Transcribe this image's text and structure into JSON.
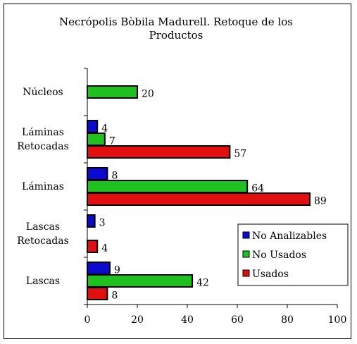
{
  "chart_data": {
    "type": "bar",
    "orientation": "horizontal",
    "title": "Necrópolis Bòbila Madurell. Retoque de los Productos",
    "categories": [
      "Núcleos",
      "Láminas Retocadas",
      "Láminas",
      "Lascas Retocadas",
      "Lascas"
    ],
    "series": [
      {
        "name": "No Analizables",
        "color": "#0a0ad0",
        "values": [
          null,
          4,
          8,
          3,
          9
        ]
      },
      {
        "name": "No Usados",
        "color": "#20c020",
        "values": [
          20,
          7,
          64,
          null,
          42
        ]
      },
      {
        "name": "Usados",
        "color": "#e01010",
        "values": [
          null,
          57,
          89,
          4,
          8
        ]
      }
    ],
    "xlim": [
      0,
      100
    ],
    "xticks": [
      0,
      20,
      40,
      60,
      80,
      100
    ],
    "legend": "lower right"
  }
}
